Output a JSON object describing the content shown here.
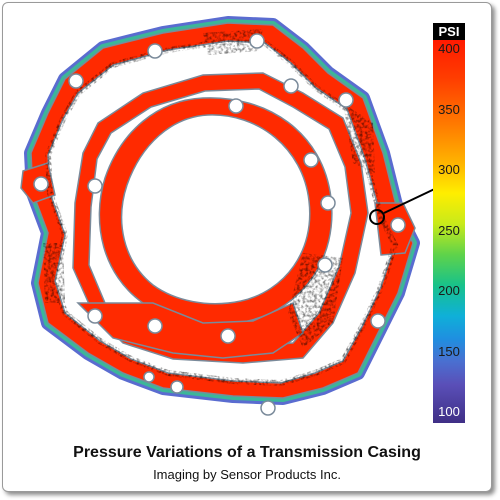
{
  "colorbar": {
    "unit": "PSI",
    "ticks": [
      "400",
      "350",
      "300",
      "250",
      "200",
      "150",
      "100"
    ]
  },
  "caption": {
    "title": "Pressure Variations of a Transmission Casing",
    "subtitle": "Imaging by Sensor Products Inc."
  },
  "colors": {
    "high_pressure": "#ff2a00",
    "casing_outline": "#7a8a9a",
    "arrow": "#000000"
  }
}
